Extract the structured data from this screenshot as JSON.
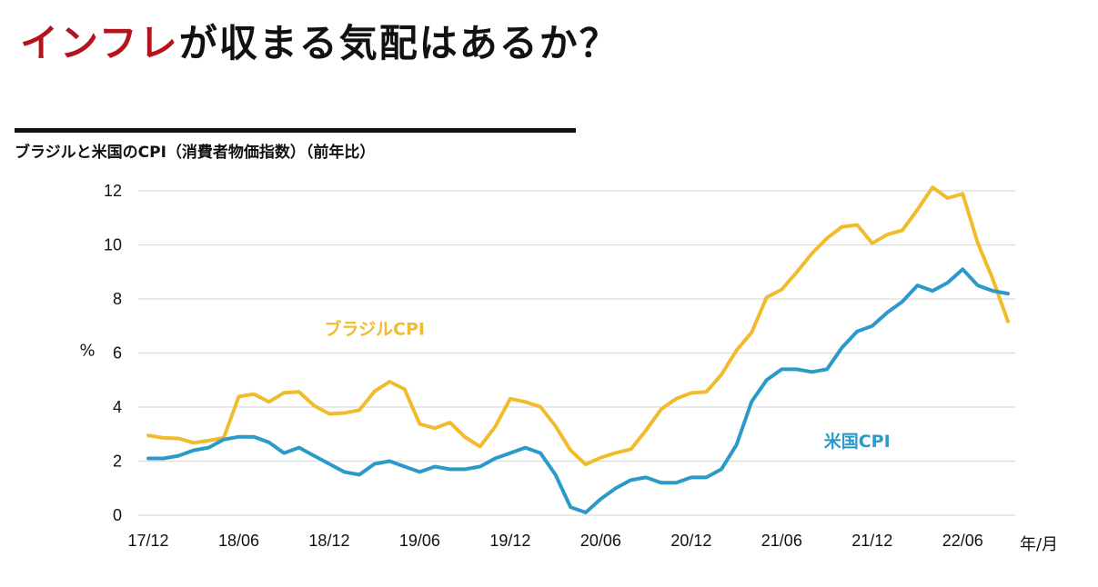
{
  "headline": {
    "accent": "インフレ",
    "rest": "が収まる気配はあるか？",
    "accent_color": "#b4141c"
  },
  "chart_title": "ブラジルと米国のCPI（消費者物価指数）（前年比）",
  "chart_data": {
    "type": "line",
    "title": "ブラジルと米国のCPI（消費者物価指数）（前年比）",
    "ylabel": "%",
    "xlabel": "年/月",
    "ylim": [
      0,
      12
    ],
    "yticks": [
      0,
      2,
      4,
      6,
      8,
      10,
      12
    ],
    "grid": true,
    "x_start": "2017-12",
    "x_ticks": [
      {
        "label": "17/12",
        "index": 0
      },
      {
        "label": "18/06",
        "index": 6
      },
      {
        "label": "18/12",
        "index": 12
      },
      {
        "label": "19/06",
        "index": 18
      },
      {
        "label": "19/12",
        "index": 24
      },
      {
        "label": "20/06",
        "index": 30
      },
      {
        "label": "20/12",
        "index": 36
      },
      {
        "label": "21/06",
        "index": 42
      },
      {
        "label": "21/12",
        "index": 48
      },
      {
        "label": "22/06",
        "index": 54
      }
    ],
    "series": [
      {
        "name": "ブラジルCPI",
        "color": "#f0bb2c",
        "values": [
          2.95,
          2.86,
          2.84,
          2.68,
          2.76,
          2.86,
          4.39,
          4.48,
          4.19,
          4.53,
          4.56,
          4.05,
          3.75,
          3.78,
          3.89,
          4.58,
          4.94,
          4.66,
          3.37,
          3.22,
          3.43,
          2.89,
          2.54,
          3.27,
          4.31,
          4.19,
          4.01,
          3.3,
          2.4,
          1.88,
          2.13,
          2.31,
          2.44,
          3.14,
          3.92,
          4.31,
          4.52,
          4.56,
          5.2,
          6.1,
          6.76,
          8.06,
          8.35,
          8.99,
          9.68,
          10.25,
          10.67,
          10.74,
          10.06,
          10.38,
          10.54,
          11.3,
          12.13,
          11.73,
          11.89,
          10.07,
          8.73,
          7.17
        ],
        "label_anchor_index": 15,
        "label_value": 6.9
      },
      {
        "name": "米国CPI",
        "color": "#2b9ac9",
        "values": [
          2.1,
          2.1,
          2.2,
          2.4,
          2.5,
          2.8,
          2.9,
          2.9,
          2.7,
          2.3,
          2.5,
          2.2,
          1.9,
          1.6,
          1.5,
          1.9,
          2.0,
          1.8,
          1.6,
          1.8,
          1.7,
          1.7,
          1.8,
          2.1,
          2.3,
          2.5,
          2.3,
          1.5,
          0.3,
          0.1,
          0.6,
          1.0,
          1.3,
          1.4,
          1.2,
          1.2,
          1.4,
          1.4,
          1.7,
          2.6,
          4.2,
          5.0,
          5.4,
          5.4,
          5.3,
          5.4,
          6.2,
          6.8,
          7.0,
          7.5,
          7.9,
          8.5,
          8.3,
          8.6,
          9.1,
          8.5,
          8.3,
          8.2
        ],
        "label_anchor_index": 47,
        "label_value": 2.75
      }
    ]
  }
}
